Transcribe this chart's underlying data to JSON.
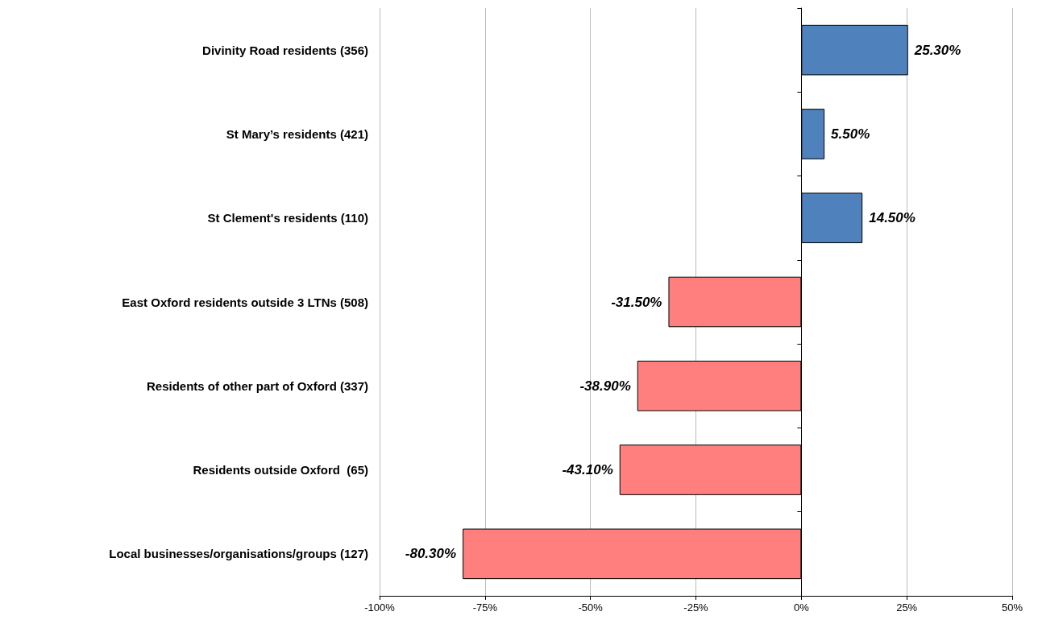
{
  "chart_data": {
    "type": "bar",
    "orientation": "horizontal",
    "categories": [
      "Divinity Road residents (356)",
      "St Mary’s residents (421)",
      "St Clement's residents (110)",
      "East Oxford residents outside 3 LTNs (508)",
      "Residents of other part of Oxford (337)",
      "Residents outside Oxford  (65)",
      "Local businesses/organisations/groups (127)"
    ],
    "values": [
      25.3,
      5.5,
      14.5,
      -31.5,
      -38.9,
      -43.1,
      -80.3
    ],
    "value_labels": [
      "25.30%",
      "5.50%",
      "14.50%",
      "-31.50%",
      "-38.90%",
      "-43.10%",
      "-80.30%"
    ],
    "colors": [
      "#4f81bd",
      "#4f81bd",
      "#4f81bd",
      "#ff7f7f",
      "#ff7f7f",
      "#ff7f7f",
      "#ff7f7f"
    ],
    "xlim": [
      -100,
      50
    ],
    "xticks": [
      {
        "value": -100,
        "label": "-100%"
      },
      {
        "value": -75,
        "label": "-75%"
      },
      {
        "value": -50,
        "label": "-50%"
      },
      {
        "value": -25,
        "label": "-25%"
      },
      {
        "value": 0,
        "label": "0%"
      },
      {
        "value": 25,
        "label": "25%"
      },
      {
        "value": 50,
        "label": "50%"
      }
    ],
    "grid": "x"
  }
}
